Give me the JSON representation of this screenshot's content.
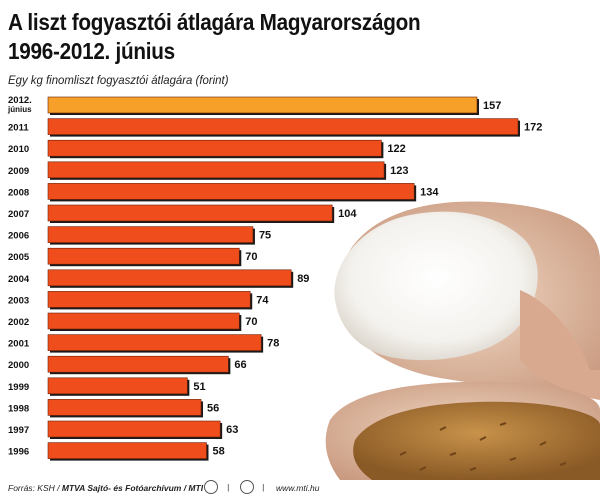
{
  "chart_data": {
    "type": "bar",
    "orientation": "horizontal",
    "title": [
      "A liszt fogyasztói átlagára Magyarországon",
      "1996-2012. június"
    ],
    "subtitle": "Egy kg finomliszt fogyasztói átlagára (forint)",
    "categories": [
      [
        "2012.",
        "június"
      ],
      [
        "2011"
      ],
      [
        "2010"
      ],
      [
        "2009"
      ],
      [
        "2008"
      ],
      [
        "2007"
      ],
      [
        "2006"
      ],
      [
        "2005"
      ],
      [
        "2004"
      ],
      [
        "2003"
      ],
      [
        "2002"
      ],
      [
        "2001"
      ],
      [
        "2000"
      ],
      [
        "1999"
      ],
      [
        "1998"
      ],
      [
        "1997"
      ],
      [
        "1996"
      ]
    ],
    "values": [
      157,
      172,
      122,
      123,
      134,
      104,
      75,
      70,
      89,
      74,
      70,
      78,
      66,
      51,
      56,
      63,
      58
    ],
    "xlim": [
      0,
      172
    ],
    "grid": false,
    "colors": {
      "highlight": "#f6a02a",
      "bar": "#ef4e1c",
      "shadow": "#1a1a1a"
    }
  },
  "footer": {
    "source_prefix": "Forrás: KSH /",
    "source_bold": "MTVA Sajtó- és Fotóarchívum / MTI",
    "separator": "|",
    "url": "www.mti.hu"
  }
}
